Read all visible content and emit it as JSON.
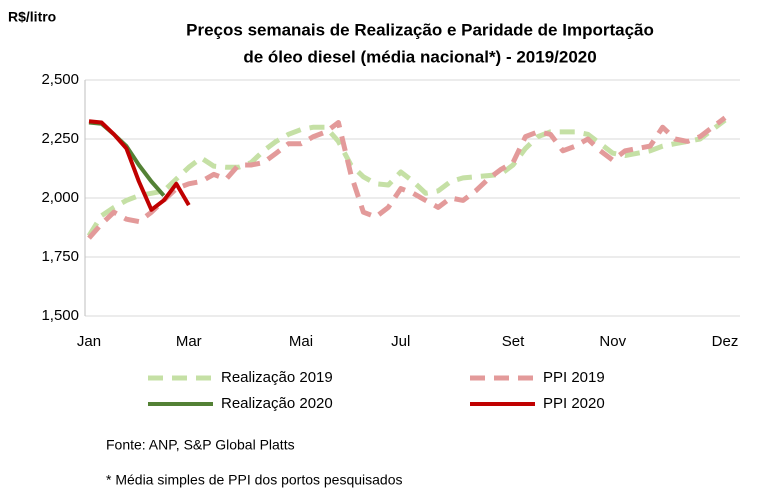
{
  "chart_data": {
    "type": "line",
    "title": [
      "Preços semanais de Realização e Paridade de Importação",
      "de óleo diesel (média nacional*) - 2019/2020"
    ],
    "y_label": "R$/litro",
    "categories": [
      "Jan",
      null,
      null,
      null,
      null,
      null,
      null,
      null,
      "Mar",
      null,
      null,
      null,
      null,
      null,
      null,
      null,
      null,
      "Mai",
      null,
      null,
      null,
      null,
      null,
      null,
      null,
      "Jul",
      null,
      null,
      null,
      null,
      null,
      null,
      null,
      null,
      "Set",
      null,
      null,
      null,
      null,
      null,
      null,
      null,
      "Nov",
      null,
      null,
      null,
      null,
      null,
      null,
      null,
      null,
      "Dez"
    ],
    "series": [
      {
        "name": "Realização 2019",
        "color": "#c5e0a5",
        "dashed": true,
        "values": [
          1840,
          1925,
          1960,
          1990,
          2010,
          2020,
          2030,
          2080,
          2130,
          2170,
          2135,
          2130,
          2130,
          2150,
          2200,
          2240,
          2270,
          2290,
          2300,
          2300,
          2240,
          2140,
          2090,
          2060,
          2055,
          2110,
          2070,
          2020,
          2030,
          2070,
          2085,
          2090,
          2095,
          2100,
          2140,
          2210,
          2260,
          2280,
          2280,
          2280,
          2270,
          2230,
          2190,
          2180,
          2190,
          2200,
          2220,
          2230,
          2240,
          2250,
          2290,
          2330
        ]
      },
      {
        "name": "PPI 2019",
        "color": "#e39a9a",
        "dashed": true,
        "values": [
          1830,
          1890,
          1940,
          1910,
          1900,
          1940,
          1990,
          2040,
          2060,
          2070,
          2100,
          2080,
          2140,
          2140,
          2150,
          2190,
          2230,
          2230,
          2260,
          2280,
          2320,
          2100,
          1940,
          1920,
          1960,
          2040,
          2020,
          1990,
          1960,
          2000,
          1990,
          2030,
          2080,
          2120,
          2150,
          2260,
          2280,
          2270,
          2200,
          2220,
          2250,
          2200,
          2160,
          2200,
          2210,
          2220,
          2300,
          2250,
          2240,
          2260,
          2300,
          2340
        ]
      },
      {
        "name": "Realização 2020",
        "color": "#538135",
        "dashed": false,
        "values": [
          2320,
          2315,
          2270,
          2220,
          2140,
          2070,
          2010,
          null,
          null,
          null,
          null,
          null,
          null,
          null,
          null,
          null,
          null,
          null,
          null,
          null,
          null,
          null,
          null,
          null,
          null,
          null,
          null,
          null,
          null,
          null,
          null,
          null,
          null,
          null,
          null,
          null,
          null,
          null,
          null,
          null,
          null,
          null,
          null,
          null,
          null,
          null,
          null,
          null,
          null,
          null,
          null,
          null
        ]
      },
      {
        "name": "PPI 2020",
        "color": "#c00000",
        "dashed": false,
        "values": [
          2325,
          2320,
          2270,
          2210,
          2070,
          1950,
          1990,
          2060,
          1970,
          null,
          null,
          null,
          null,
          null,
          null,
          null,
          null,
          null,
          null,
          null,
          null,
          null,
          null,
          null,
          null,
          null,
          null,
          null,
          null,
          null,
          null,
          null,
          null,
          null,
          null,
          null,
          null,
          null,
          null,
          null,
          null,
          null,
          null,
          null,
          null,
          null,
          null,
          null,
          null,
          null,
          null,
          null
        ]
      }
    ],
    "ylim": [
      1500,
      2500
    ],
    "yticks": [
      {
        "value": 1500,
        "label": "1,500"
      },
      {
        "value": 1750,
        "label": "1,750"
      },
      {
        "value": 2000,
        "label": "2,000"
      },
      {
        "value": 2250,
        "label": "2,250"
      },
      {
        "value": 2500,
        "label": "2,500"
      }
    ],
    "grid": true,
    "legend": "bottom",
    "source": "Fonte: ANP, S&P Global Platts",
    "footnote": "* Média simples de PPI dos portos pesquisados"
  }
}
